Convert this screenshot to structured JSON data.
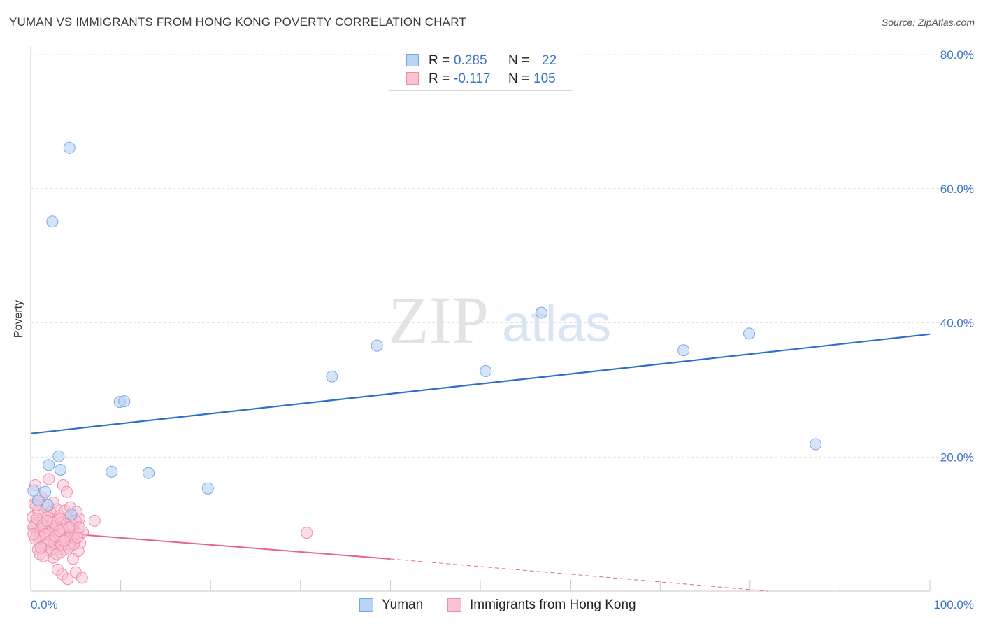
{
  "title": "YUMAN VS IMMIGRANTS FROM HONG KONG POVERTY CORRELATION CHART",
  "source": "Source: ZipAtlas.com",
  "watermark": {
    "zip": "ZIP",
    "atlas": "atlas"
  },
  "stats": {
    "r_label": "R =",
    "n_label": "N =",
    "rows": [
      {
        "r": "0.285",
        "n": "22"
      },
      {
        "r": "-0.117",
        "n": "105"
      }
    ]
  },
  "legend": {
    "items": [
      {
        "label": "Yuman"
      },
      {
        "label": "Immigrants from Hong Kong"
      }
    ]
  },
  "chart_data": {
    "type": "scatter",
    "title": "YUMAN VS IMMIGRANTS FROM HONG KONG POVERTY CORRELATION CHART",
    "xlabel": "",
    "ylabel": "Poverty",
    "xlim": [
      0,
      100
    ],
    "ylim": [
      0,
      80
    ],
    "x_tick_labels": [
      "0.0%",
      "100.0%"
    ],
    "y_ticks": [
      20,
      40,
      60,
      80
    ],
    "y_tick_labels": [
      "20.0%",
      "40.0%",
      "60.0%",
      "80.0%"
    ],
    "colors": {
      "yuman_fill": "#b9d3f5",
      "yuman_stroke": "#7ba7e0",
      "yuman_line": "#2f6fcc",
      "hk_fill": "#f8c3d3",
      "hk_stroke": "#ee8cab",
      "hk_line": "#e8638f",
      "grid": "#e4e4e4",
      "tick_text": "#3a73c8"
    },
    "series": [
      {
        "name": "Yuman",
        "points": [
          [
            0.3,
            15.0
          ],
          [
            0.8,
            13.5
          ],
          [
            1.6,
            14.8
          ],
          [
            1.9,
            12.8
          ],
          [
            2.0,
            18.8
          ],
          [
            3.1,
            20.1
          ],
          [
            3.3,
            18.1
          ],
          [
            4.3,
            66.1
          ],
          [
            2.4,
            55.1
          ],
          [
            4.5,
            11.4
          ],
          [
            9.0,
            17.8
          ],
          [
            9.9,
            28.2
          ],
          [
            10.4,
            28.3
          ],
          [
            13.1,
            17.6
          ],
          [
            19.7,
            15.3
          ],
          [
            33.5,
            32.0
          ],
          [
            38.5,
            36.6
          ],
          [
            50.6,
            32.8
          ],
          [
            56.8,
            41.5
          ],
          [
            72.6,
            35.9
          ],
          [
            79.9,
            38.4
          ],
          [
            87.3,
            21.9
          ]
        ],
        "trend": {
          "x": [
            0,
            100
          ],
          "y": [
            23.5,
            38.3
          ]
        }
      },
      {
        "name": "Immigrants from Hong Kong",
        "points": [
          [
            0.2,
            11.0
          ],
          [
            0.3,
            9.5
          ],
          [
            0.4,
            13.0
          ],
          [
            0.5,
            15.8
          ],
          [
            0.6,
            10.2
          ],
          [
            0.7,
            8.8
          ],
          [
            0.8,
            12.0
          ],
          [
            0.9,
            7.5
          ],
          [
            1.0,
            10.5
          ],
          [
            1.0,
            5.5
          ],
          [
            1.1,
            9.0
          ],
          [
            1.2,
            14.0
          ],
          [
            1.3,
            8.2
          ],
          [
            1.4,
            11.5
          ],
          [
            1.5,
            6.8
          ],
          [
            1.6,
            9.8
          ],
          [
            1.7,
            12.5
          ],
          [
            1.8,
            7.2
          ],
          [
            1.9,
            10.0
          ],
          [
            2.0,
            16.7
          ],
          [
            2.0,
            8.5
          ],
          [
            2.1,
            6.0
          ],
          [
            2.2,
            11.8
          ],
          [
            2.3,
            9.2
          ],
          [
            2.4,
            7.8
          ],
          [
            2.5,
            13.2
          ],
          [
            2.5,
            5.0
          ],
          [
            2.6,
            10.8
          ],
          [
            2.7,
            8.0
          ],
          [
            2.8,
            6.5
          ],
          [
            2.9,
            12.2
          ],
          [
            3.0,
            9.5
          ],
          [
            3.0,
            3.2
          ],
          [
            3.1,
            7.0
          ],
          [
            3.2,
            11.2
          ],
          [
            3.3,
            5.8
          ],
          [
            3.4,
            10.2
          ],
          [
            3.5,
            8.8
          ],
          [
            3.5,
            2.5
          ],
          [
            3.6,
            15.8
          ],
          [
            3.7,
            6.2
          ],
          [
            3.8,
            12.0
          ],
          [
            3.9,
            9.0
          ],
          [
            4.0,
            14.8
          ],
          [
            4.0,
            7.5
          ],
          [
            4.1,
            1.8
          ],
          [
            4.2,
            11.0
          ],
          [
            4.3,
            8.2
          ],
          [
            4.4,
            12.5
          ],
          [
            4.5,
            6.8
          ],
          [
            4.6,
            10.5
          ],
          [
            4.7,
            4.8
          ],
          [
            4.8,
            9.2
          ],
          [
            4.9,
            7.8
          ],
          [
            5.0,
            2.8
          ],
          [
            5.1,
            11.8
          ],
          [
            5.2,
            8.5
          ],
          [
            5.3,
            6.0
          ],
          [
            5.4,
            10.8
          ],
          [
            5.5,
            7.2
          ],
          [
            5.7,
            2.0
          ],
          [
            5.8,
            8.8
          ],
          [
            7.1,
            10.5
          ],
          [
            30.7,
            8.7
          ],
          [
            0.4,
            9.8
          ],
          [
            0.6,
            12.8
          ],
          [
            0.8,
            6.2
          ],
          [
            1.0,
            8.0
          ],
          [
            1.2,
            10.2
          ],
          [
            1.4,
            5.2
          ],
          [
            1.5,
            9.5
          ],
          [
            1.7,
            7.0
          ],
          [
            1.9,
            11.0
          ],
          [
            2.1,
            8.8
          ],
          [
            2.3,
            6.2
          ],
          [
            2.4,
            10.2
          ],
          [
            2.6,
            7.2
          ],
          [
            2.8,
            9.8
          ],
          [
            2.9,
            5.5
          ],
          [
            3.1,
            8.5
          ],
          [
            3.3,
            10.8
          ],
          [
            3.4,
            6.8
          ],
          [
            3.6,
            9.2
          ],
          [
            3.8,
            7.8
          ],
          [
            4.0,
            10.0
          ],
          [
            4.2,
            6.5
          ],
          [
            4.4,
            8.2
          ],
          [
            4.6,
            9.8
          ],
          [
            4.8,
            7.0
          ],
          [
            5.0,
            10.5
          ],
          [
            5.2,
            8.0
          ],
          [
            5.4,
            9.5
          ],
          [
            0.5,
            7.8
          ],
          [
            0.7,
            10.8
          ],
          [
            0.9,
            13.5
          ],
          [
            1.1,
            6.5
          ],
          [
            1.3,
            9.8
          ],
          [
            1.6,
            8.5
          ],
          [
            1.8,
            10.5
          ],
          [
            2.2,
            7.5
          ],
          [
            2.7,
            8.2
          ],
          [
            3.2,
            9.0
          ],
          [
            3.7,
            7.5
          ],
          [
            4.3,
            9.5
          ],
          [
            0.3,
            8.5
          ]
        ],
        "trend": {
          "x": [
            0,
            40
          ],
          "y": [
            9.0,
            4.8
          ]
        },
        "trend_extension": {
          "x": [
            40,
            82
          ],
          "y": [
            4.8,
            0.0
          ]
        }
      }
    ]
  }
}
